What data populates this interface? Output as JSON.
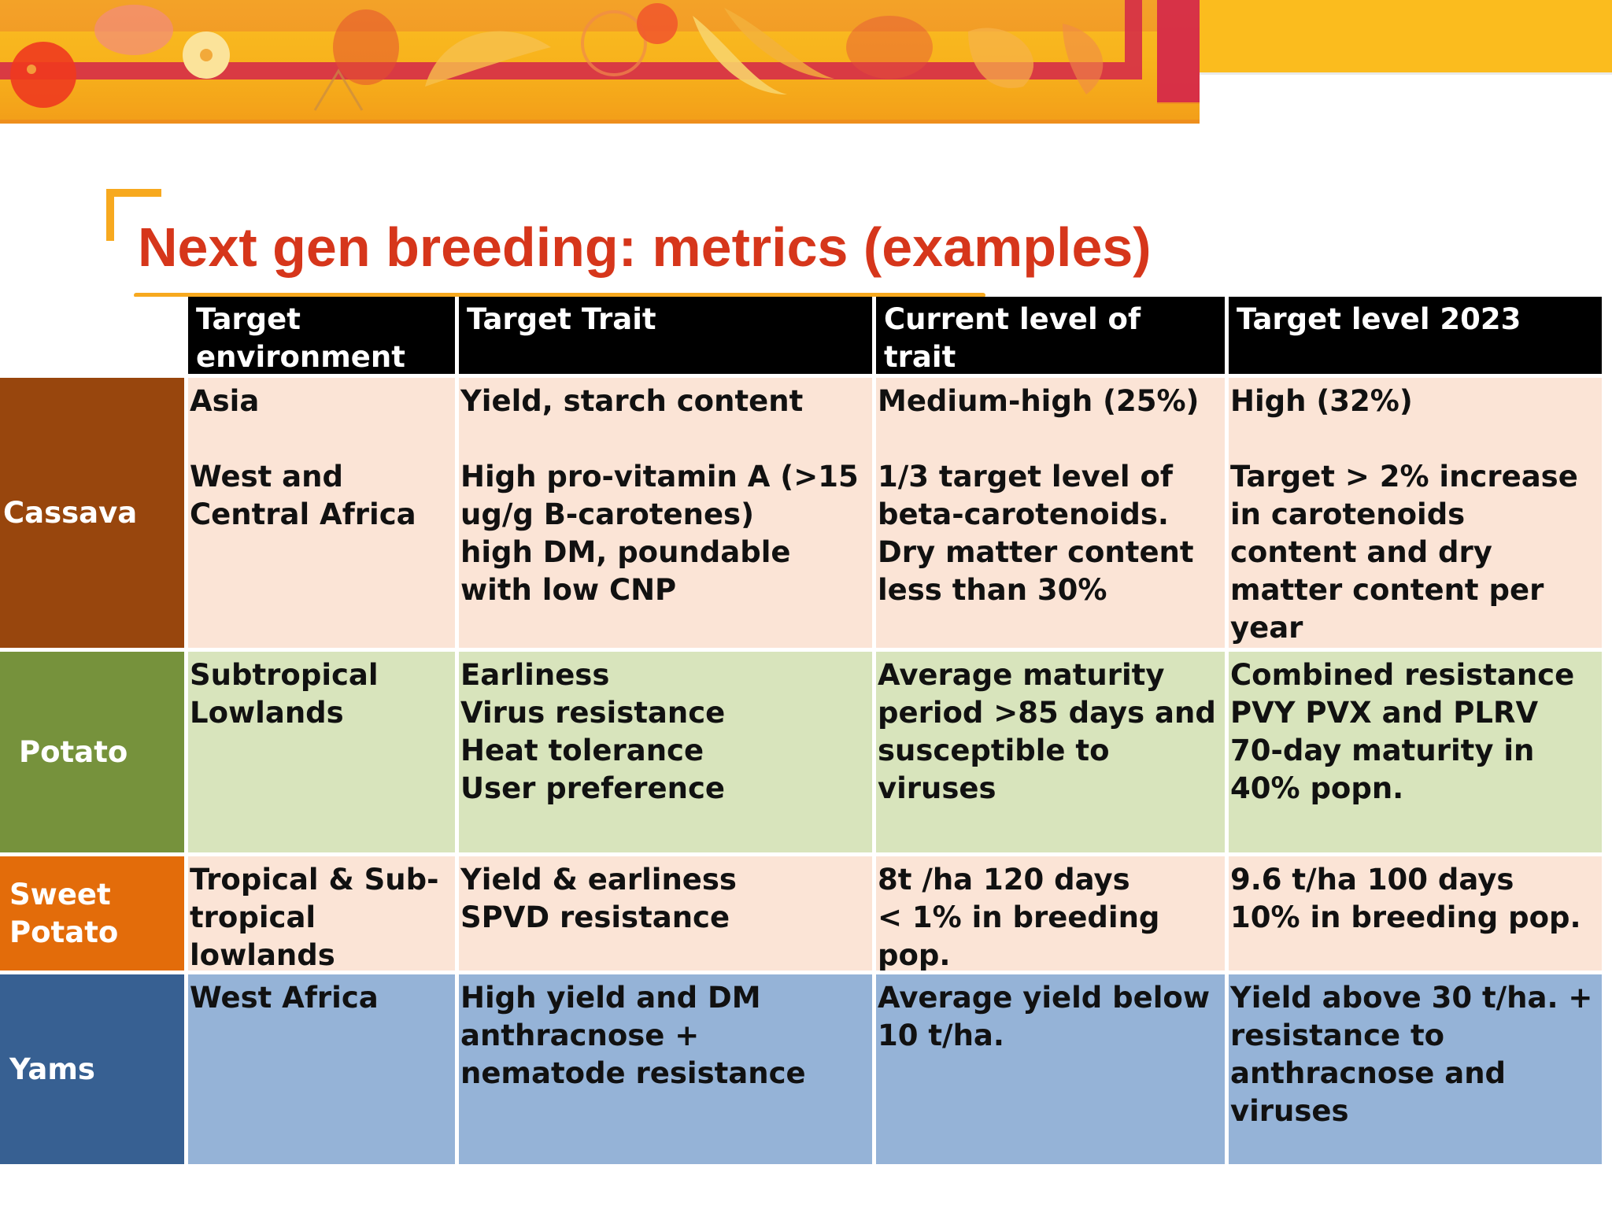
{
  "slide": {
    "title": "Next gen breeding: metrics (examples)",
    "accent_color": "#d6361b",
    "underline_color": "#f7a91f",
    "banner_icon": "fruit-and-vegetable-illustration"
  },
  "table": {
    "headers": [
      "Target environment",
      "Target Trait",
      "Current level of trait",
      "Target level  2023"
    ],
    "header_text_color": "#ffffff",
    "rows": [
      {
        "crop": "Cassava",
        "label_color": "#98460d",
        "fill_color": "#fbe4d6",
        "environment": "Asia\n\nWest and\nCentral Africa",
        "trait": "Yield, starch content\n\nHigh pro-vitamin A (>15\nug/g B-carotenes)\nhigh DM, poundable\nwith low CNP",
        "current": "Medium-high (25%)\n\n1/3 target level of\nbeta-carotenoids.\nDry matter content\nless than 30%",
        "target": "High (32%)\n\nTarget > 2% increase\nin carotenoids\ncontent and dry\nmatter content per\nyear"
      },
      {
        "crop": "Potato",
        "label_color": "#76923c",
        "fill_color": "#d8e4bc",
        "environment": "Subtropical\nLowlands",
        "trait": "Earliness\nVirus resistance\nHeat tolerance\nUser preference",
        "current": "Average maturity\nperiod >85 days and\nsusceptible to\nviruses",
        "target": "Combined resistance\nPVY PVX and PLRV\n70-day maturity  in\n40% popn."
      },
      {
        "crop": "Sweet\nPotato",
        "label_color": "#e36c0a",
        "fill_color": "#fbe4d6",
        "environment": "Tropical & Sub-\ntropical\nlowlands",
        "trait": "Yield & earliness\nSPVD resistance",
        "current": "8t /ha   120 days\n< 1% in breeding\npop.",
        "target": "9.6 t/ha   100 days\n10% in breeding pop."
      },
      {
        "crop": "Yams",
        "label_color": "#376092",
        "fill_color": "#95b3d7",
        "environment": "West Africa",
        "trait": "High yield and DM\nanthracnose +\nnematode resistance",
        "current": "Average yield below\n10 t/ha.",
        "target": "Yield above 30 t/ha. +\nresistance to\nanthracnose and\nviruses"
      }
    ]
  }
}
